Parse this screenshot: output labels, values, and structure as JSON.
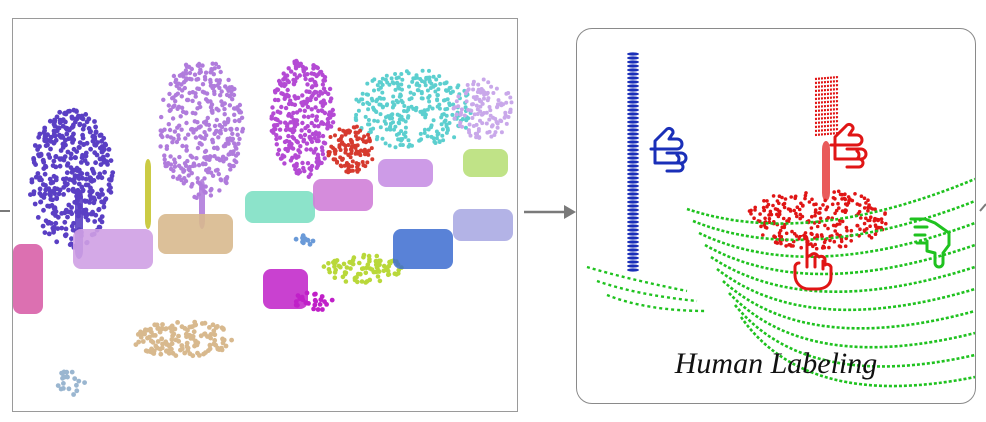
{
  "right_panel": {
    "caption": "Human Labeling"
  },
  "colors": {
    "purple_tree": "#5a3fc4",
    "violet_tree": "#b07cdc",
    "magenta_tree": "#b44ad4",
    "cyan_tree": "#5ccfcf",
    "lavender_tree": "#c9a8ea",
    "red_object": "#d63a2e",
    "tan_object": "#d8b98e",
    "teal_object": "#7fe0c4",
    "pink_object": "#d860a8",
    "blue_pole": "#1a2fb8",
    "green_ground": "#1fc21f",
    "red_labels": "#e01515",
    "arrow_gray": "#7a7a7a"
  },
  "icons": [
    "pointing-hand-icon-blue",
    "pointing-hand-icon-red-upper",
    "pointing-hand-icon-green",
    "pointing-hand-icon-red-lower"
  ]
}
